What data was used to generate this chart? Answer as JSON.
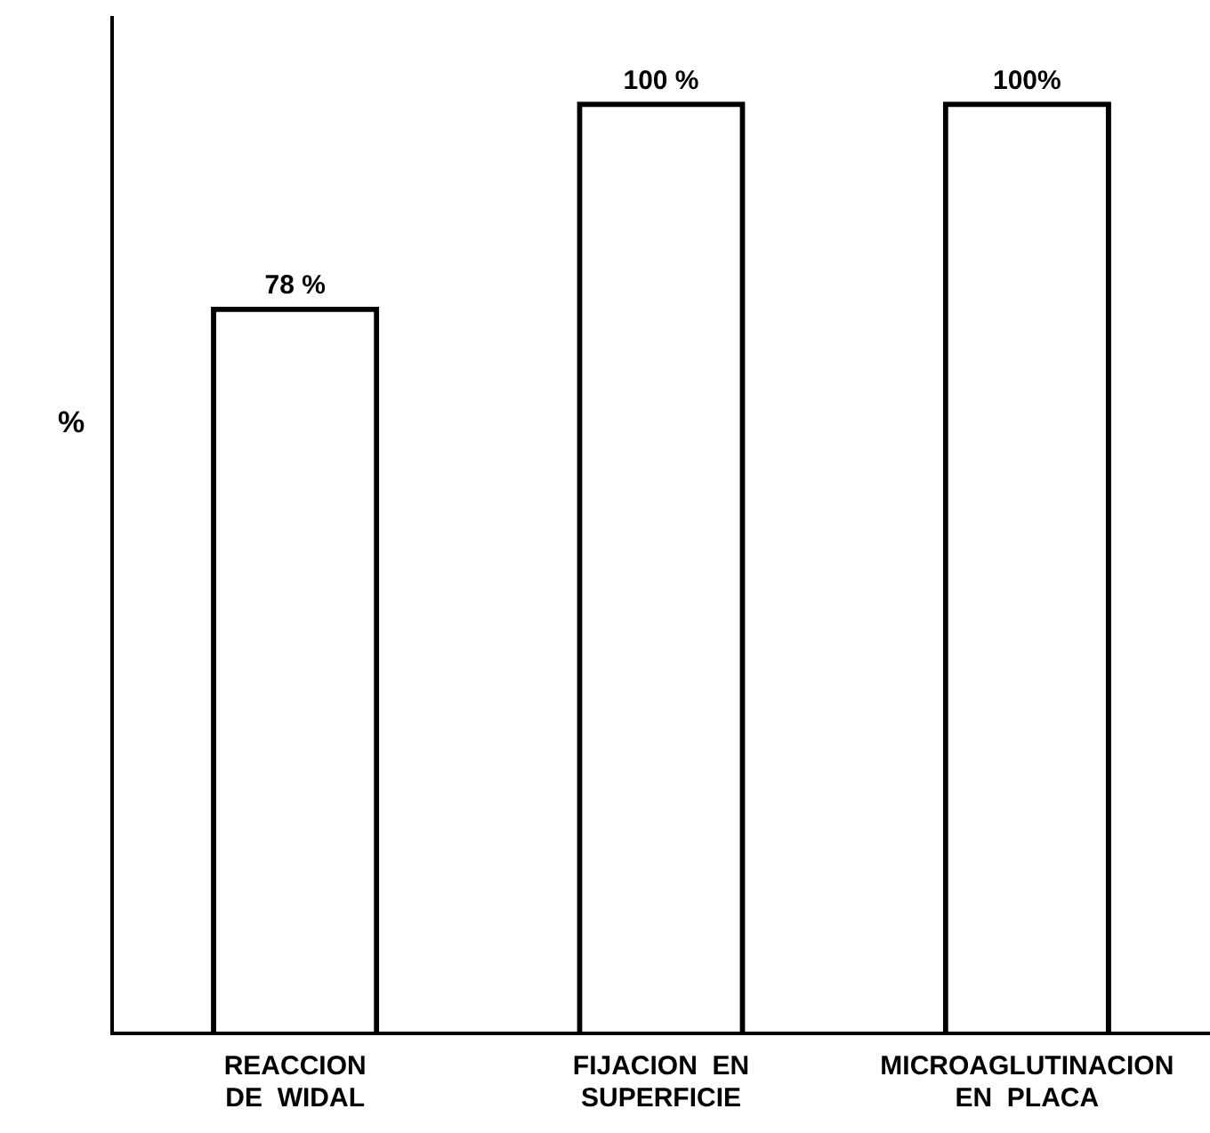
{
  "chart_data": {
    "type": "bar",
    "ylabel": "%",
    "categories": [
      "REACCION\nDE  WIDAL",
      "FIJACION  EN\nSUPERFICIE",
      "MICROAGLUTINACION\nEN  PLACA"
    ],
    "values": [
      78,
      100,
      100
    ],
    "value_labels": [
      "78 %",
      "100 %",
      "100%"
    ],
    "color": "#000000",
    "ylim": [
      0,
      109
    ],
    "tick_labels": "x",
    "grid": false,
    "legend": false
  }
}
